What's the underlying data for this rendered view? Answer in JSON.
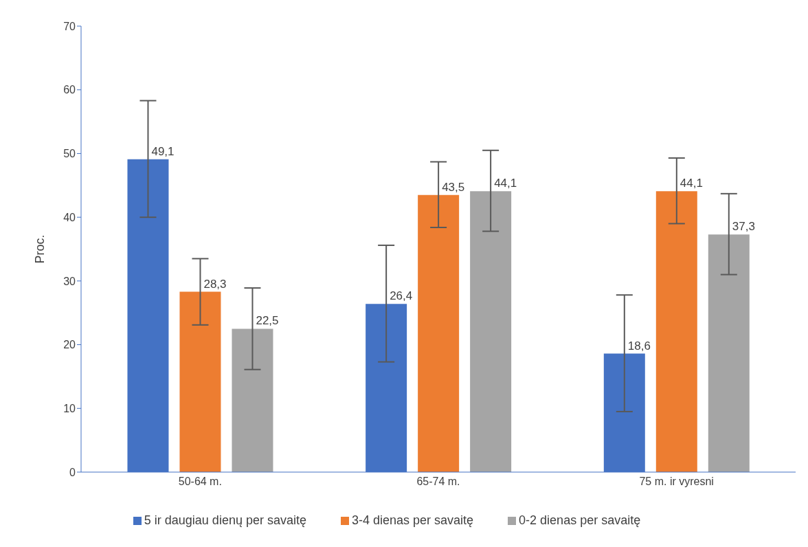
{
  "chart_data": {
    "type": "bar",
    "ylabel": "Proc.",
    "categories": [
      "50-64 m.",
      "65-74 m.",
      "75 m. ir vyresni"
    ],
    "series": [
      {
        "name": "5 ir daugiau dienų per savaitę",
        "color": "#4472c4",
        "values": [
          49.1,
          26.4,
          18.6
        ],
        "value_labels": [
          "49,1",
          "26,4",
          "18,6"
        ],
        "errors": [
          [
            40.0,
            58.3
          ],
          [
            17.3,
            35.6
          ],
          [
            9.5,
            27.8
          ]
        ]
      },
      {
        "name": "3-4 dienas per savaitę",
        "color": "#ed7d31",
        "values": [
          28.3,
          43.5,
          44.1
        ],
        "value_labels": [
          "28,3",
          "43,5",
          "44,1"
        ],
        "errors": [
          [
            23.1,
            33.5
          ],
          [
            38.4,
            48.7
          ],
          [
            39.0,
            49.3
          ]
        ]
      },
      {
        "name": "0-2 dienas per savaitę",
        "color": "#a5a5a5",
        "values": [
          22.5,
          44.1,
          37.3
        ],
        "value_labels": [
          "22,5",
          "44,1",
          "37,3"
        ],
        "errors": [
          [
            16.1,
            28.9
          ],
          [
            37.8,
            50.5
          ],
          [
            31.0,
            43.7
          ]
        ]
      }
    ],
    "ylim": [
      0,
      70
    ],
    "yticks": [
      0,
      10,
      20,
      30,
      40,
      50,
      60,
      70
    ],
    "grid": false,
    "legend": "bottom"
  }
}
